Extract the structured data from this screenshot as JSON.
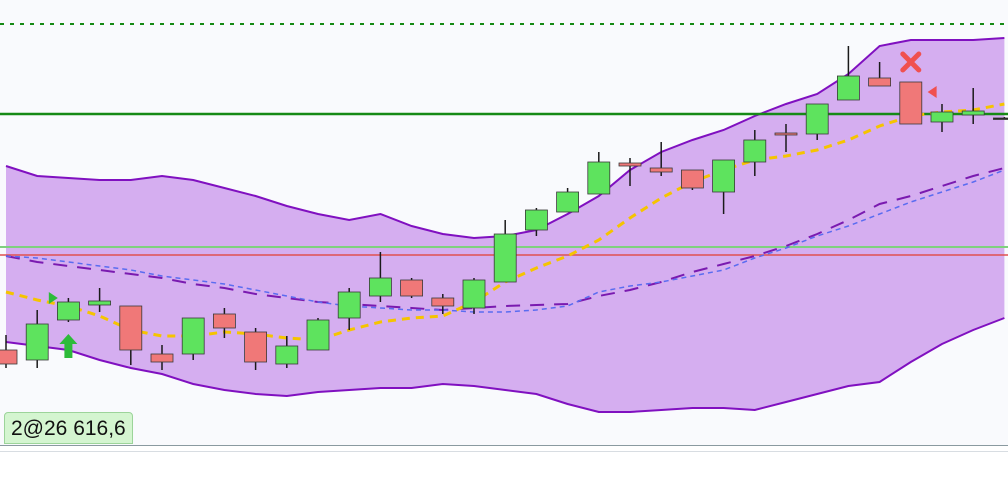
{
  "chart_data": {
    "type": "candlestick",
    "categories": [
      null,
      null,
      null,
      null,
      null,
      null,
      null,
      null,
      null,
      null,
      null,
      null,
      null,
      null,
      null,
      null,
      null,
      null,
      null,
      null,
      null,
      null,
      null,
      null,
      null,
      null,
      null,
      null,
      null,
      null,
      null,
      null,
      null
    ],
    "open": [
      95,
      85,
      125,
      140,
      139,
      91,
      91,
      131,
      113,
      81,
      95,
      127,
      149,
      165,
      147,
      137,
      163,
      215,
      233,
      251,
      282,
      277,
      275,
      253,
      283,
      312,
      311,
      345,
      367,
      363,
      323,
      330,
      327
    ],
    "high": [
      110,
      135,
      147,
      157,
      139,
      100,
      127,
      137,
      117,
      109,
      127,
      157,
      193,
      167,
      151,
      167,
      225,
      237,
      257,
      293,
      287,
      303,
      275,
      285,
      315,
      321,
      341,
      399,
      383,
      363,
      341,
      357,
      328
    ],
    "low": [
      77,
      77,
      123,
      133,
      80,
      75,
      85,
      107,
      75,
      77,
      95,
      115,
      143,
      147,
      131,
      131,
      163,
      209,
      233,
      251,
      259,
      269,
      255,
      231,
      269,
      293,
      305,
      345,
      359,
      321,
      313,
      321,
      326
    ],
    "close": [
      81,
      121,
      143,
      144,
      95,
      83,
      127,
      117,
      83,
      99,
      125,
      153,
      167,
      149,
      139,
      165,
      211,
      235,
      253,
      283,
      279,
      273,
      257,
      285,
      305,
      310,
      341,
      369,
      359,
      321,
      333,
      334,
      327
    ],
    "up_color": "#5ee35e",
    "down_color": "#f07878",
    "ylim": [
      0,
      445
    ],
    "band": {
      "color": "#8010c0",
      "fill": "#d5aef0",
      "upper": [
        279,
        269,
        267,
        265,
        265,
        269,
        265,
        257,
        249,
        239,
        231,
        225,
        231,
        219,
        211,
        207,
        209,
        215,
        231,
        249,
        275,
        293,
        305,
        315,
        329,
        341,
        351,
        371,
        399,
        405,
        405,
        405,
        407
      ],
      "lower": [
        103,
        99,
        95,
        85,
        77,
        71,
        61,
        55,
        51,
        49,
        53,
        55,
        57,
        57,
        61,
        59,
        55,
        51,
        41,
        33,
        33,
        35,
        37,
        37,
        35,
        43,
        51,
        59,
        63,
        83,
        101,
        115,
        127
      ]
    },
    "series": [
      {
        "color": "#7a1ab0",
        "dash": "14 10",
        "width": 2,
        "values": [
          189,
          183,
          179,
          175,
          171,
          167,
          161,
          157,
          151,
          147,
          143,
          141,
          139,
          137,
          135,
          137,
          139,
          140,
          141,
          149,
          155,
          163,
          173,
          181,
          189,
          199,
          211,
          225,
          241,
          249,
          259,
          269,
          277
        ]
      },
      {
        "color": "#5a6cf0",
        "dash": "5 4",
        "width": 1.5,
        "values": [
          189,
          187,
          183,
          179,
          175,
          169,
          165,
          161,
          155,
          149,
          143,
          139,
          137,
          135,
          135,
          133,
          133,
          135,
          139,
          153,
          159,
          163,
          169,
          175,
          187,
          197,
          209,
          219,
          231,
          243,
          253,
          263,
          275
        ]
      },
      {
        "color": "#f5c400",
        "dash": "8 6",
        "width": 3,
        "values": [
          153,
          145,
          139,
          129,
          115,
          109,
          109,
          113,
          111,
          107,
          105,
          115,
          123,
          127,
          129,
          143,
          163,
          177,
          189,
          205,
          227,
          247,
          263,
          275,
          285,
          289,
          295,
          305,
          319,
          329,
          333,
          335,
          341
        ]
      }
    ],
    "hlines": [
      {
        "value": 421,
        "color": "#168a16",
        "dash": "4 6",
        "width": 2
      },
      {
        "value": 331,
        "color": "#168a16",
        "dash": "",
        "width": 2.5
      },
      {
        "value": 198,
        "color": "#7fd07f",
        "dash": "",
        "width": 2
      },
      {
        "value": 190,
        "color": "#e05050",
        "dash": "",
        "width": 1.5
      }
    ],
    "markers": [
      {
        "kind": "arrow-up",
        "index": 2,
        "value": 99,
        "color": "#2dbb3a"
      },
      {
        "kind": "triangle-right",
        "index": 1.5,
        "value": 147,
        "color": "#2dbb3a"
      },
      {
        "kind": "cross",
        "index": 29,
        "value": 383,
        "color": "#f05050"
      },
      {
        "kind": "triangle-left",
        "index": 29.7,
        "value": 353,
        "color": "#f05050"
      }
    ],
    "label": "2@26 616,6"
  }
}
